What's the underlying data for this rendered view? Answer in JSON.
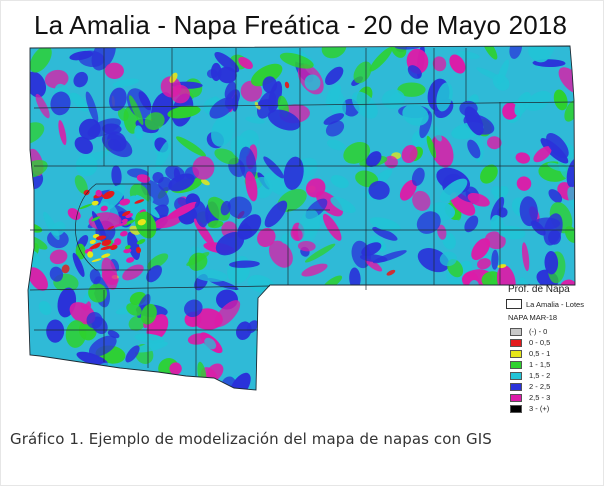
{
  "title": "La Amalia - Napa Freática - 20 de Mayo 2018",
  "caption": "Gráfico 1. Ejemplo de modelización del mapa de napas con GIS",
  "legend": {
    "title": "Prof. de Napa",
    "lotes_label": "La Amalia - Lotes",
    "layer_label": "NAPA MAR-18",
    "classes": [
      {
        "label": "(-) - 0",
        "color": "#c8c8c8"
      },
      {
        "label": "0 - 0,5",
        "color": "#e31a1c"
      },
      {
        "label": "0,5 - 1",
        "color": "#e6e61a"
      },
      {
        "label": "1 - 1,5",
        "color": "#2ed12e"
      },
      {
        "label": "1,5 - 2",
        "color": "#22c3d6"
      },
      {
        "label": "2 - 2,5",
        "color": "#2a32d9"
      },
      {
        "label": "2,5 - 3",
        "color": "#dc1ca8"
      },
      {
        "label": "3 - (+)",
        "color": "#000000"
      }
    ]
  }
}
